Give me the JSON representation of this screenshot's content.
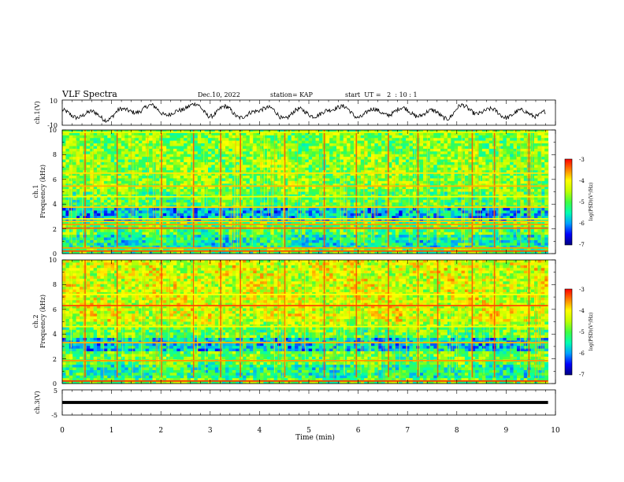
{
  "header": {
    "title": "VLF Spectra",
    "date": "Dec.10, 2022",
    "station": "station= KAP",
    "start_ut": "start  UT =   2  : 10 : 1"
  },
  "colors": {
    "spectrum_scale": [
      "#000080",
      "#0000ff",
      "#00a0ff",
      "#00ffb0",
      "#40ff40",
      "#c0ff00",
      "#ffff00",
      "#ff8000",
      "#ff0000",
      "#ffffff"
    ],
    "trace": "#000000"
  },
  "chart_data": [
    {
      "id": "ch1-waveform",
      "type": "line",
      "ylabel": "ch.1(V)",
      "ylim": [
        -10,
        10
      ],
      "ytick_labels": [
        "10",
        "-10"
      ],
      "xlim": [
        0,
        10
      ],
      "series": [
        {
          "x": [
            0,
            0.3,
            0.6,
            0.9,
            1.2,
            1.5,
            1.8,
            2.1,
            2.4,
            2.7,
            3.0,
            3.3,
            3.6,
            3.9,
            4.2,
            4.5,
            4.8,
            5.1,
            5.4,
            5.7,
            6.0,
            6.3,
            6.6,
            6.9,
            7.2,
            7.5,
            7.8,
            8.1,
            8.4,
            8.7,
            9.0,
            9.3,
            9.6,
            9.8
          ],
          "y": [
            2,
            -4,
            1,
            -6,
            3,
            0,
            6,
            -2,
            2,
            7,
            -3,
            5,
            -4,
            1,
            4,
            -5,
            3,
            -3,
            2,
            5,
            -4,
            3,
            -2,
            4,
            -3,
            2,
            -5,
            6,
            -1,
            3,
            -4,
            2,
            -3,
            1
          ]
        }
      ]
    },
    {
      "id": "ch1-spectrogram",
      "type": "heatmap",
      "ylabel_top": "ch.1",
      "ylabel": "Frequency (kHz)",
      "ylim": [
        0,
        10
      ],
      "ytick_labels": [
        "0",
        "2",
        "4",
        "6",
        "8",
        "10"
      ],
      "xlim": [
        0,
        10
      ],
      "data_end_min": 9.85,
      "colorbar": {
        "label": "log(PSD)(V²/Hz)",
        "min": -7,
        "max": -3,
        "tick_labels": [
          "-3",
          "-4",
          "-5",
          "-6",
          "-7"
        ]
      },
      "bands": [
        {
          "f": 0.2,
          "z": -3.3
        },
        {
          "f": 0.45,
          "z": -3.6
        },
        {
          "f": 2.05,
          "z": -3.4
        },
        {
          "f": 2.35,
          "z": -3.6
        },
        {
          "f": 2.6,
          "z": -3.8
        },
        {
          "f": 2.8,
          "z": -4.0
        },
        {
          "f": 3.75,
          "z": -3.8
        },
        {
          "f": 4.6,
          "z": -4.1
        },
        {
          "f": 5.45,
          "z": -3.7
        },
        {
          "f": 6.5,
          "z": -3.9
        },
        {
          "f": 9.8,
          "z": -4.2
        }
      ],
      "impulse_times_min": [
        0.45,
        1.1,
        2.0,
        2.65,
        3.2,
        3.6,
        4.5,
        5.3,
        5.95,
        6.6,
        7.2,
        8.3,
        8.75,
        9.45
      ]
    },
    {
      "id": "ch2-spectrogram",
      "type": "heatmap",
      "ylabel_top": "ch.2",
      "ylabel": "Frequency (kHz)",
      "ylim": [
        0,
        10
      ],
      "ytick_labels": [
        "0",
        "2",
        "4",
        "6",
        "8",
        "10"
      ],
      "xlim": [
        0,
        10
      ],
      "data_end_min": 9.85,
      "colorbar": {
        "label": "log(PSD)(V²/Hz)",
        "min": -7,
        "max": -3,
        "tick_labels": [
          "-3",
          "-4",
          "-5",
          "-6",
          "-7"
        ]
      },
      "bands": [
        {
          "f": 0.2,
          "z": -3.2
        },
        {
          "f": 1.85,
          "z": -3.6
        },
        {
          "f": 3.3,
          "z": -3.7
        },
        {
          "f": 4.6,
          "z": -4.1
        },
        {
          "f": 6.3,
          "z": -3.3
        },
        {
          "f": 7.2,
          "z": -4.0
        }
      ],
      "impulse_times_min": [
        0.45,
        1.1,
        2.0,
        2.65,
        3.2,
        3.6,
        4.5,
        5.3,
        5.95,
        6.6,
        7.2,
        7.6,
        8.3,
        8.75,
        9.45
      ]
    },
    {
      "id": "ch3-waveform",
      "type": "line",
      "ylabel": "ch.3(V)",
      "ylim": [
        -5,
        5
      ],
      "ytick_labels": [
        "5",
        "-5"
      ],
      "xlim": [
        0,
        10
      ],
      "xlabel": "Time (min)",
      "xtick_labels": [
        "0",
        "1",
        "2",
        "3",
        "4",
        "5",
        "6",
        "7",
        "8",
        "9",
        "10"
      ],
      "series": [
        {
          "x": [
            0,
            9.85
          ],
          "y": [
            0,
            0
          ],
          "band_half_width_V": 0.6
        }
      ]
    }
  ]
}
